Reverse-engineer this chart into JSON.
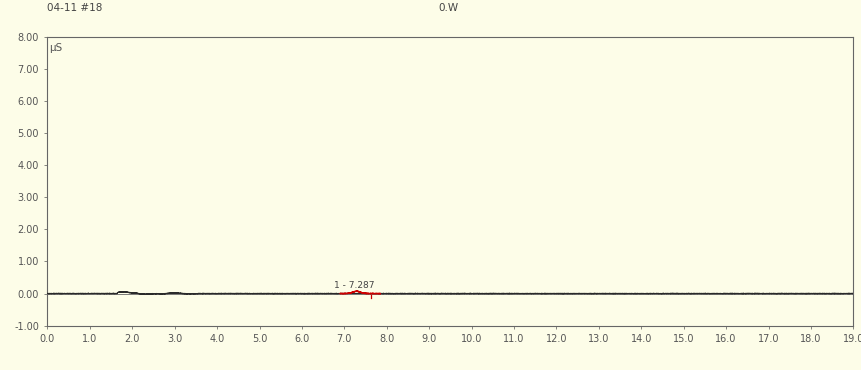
{
  "bg_color": "#FDFDE8",
  "top_left_label": "04-11 #18",
  "top_center_label": "0.W",
  "ylabel": "μS",
  "xlim": [
    0.0,
    19.0
  ],
  "ylim": [
    -1.0,
    8.0
  ],
  "yticks": [
    -1.0,
    0.0,
    1.0,
    2.0,
    3.0,
    4.0,
    5.0,
    6.0,
    7.0,
    8.0
  ],
  "ytick_labels": [
    "-1.00",
    "0.00",
    "1.00",
    "2.00",
    "3.00",
    "4.00",
    "5.00",
    "6.00",
    "7.00",
    "8.00"
  ],
  "xticks": [
    0.0,
    1.0,
    2.0,
    3.0,
    4.0,
    5.0,
    6.0,
    7.0,
    8.0,
    9.0,
    10.0,
    11.0,
    12.0,
    13.0,
    14.0,
    15.0,
    16.0,
    17.0,
    18.0,
    19.0
  ],
  "peak1_x": 7.287,
  "peak1_label": "1 - 7.287",
  "line_color": "#2a2a2a",
  "peak1_color": "#cc0000",
  "border_color": "#666666",
  "tick_color": "#555555",
  "label_color": "#444444"
}
